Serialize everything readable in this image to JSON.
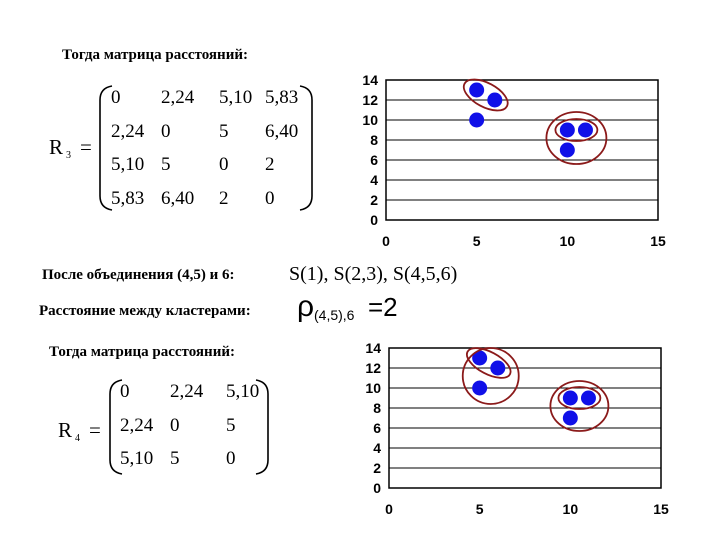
{
  "slide": {
    "heading1": "Тогда матрица расстояний:",
    "heading2": "Тогда матрица расстояний:",
    "merge_text": "После объединения (4,5) и 6:",
    "clusters": "S(1),  S(2,3),  S(4,5,6)",
    "distance_text": "Расстояние между кластерами:",
    "rho_symbol": "ρ",
    "rho_subscript": "(4,5),6",
    "rho_value": "=2"
  },
  "matrix3": {
    "name": "R",
    "sub": "3",
    "eq": "=",
    "rows": [
      [
        "0",
        "2,24",
        "5,10",
        "5,83"
      ],
      [
        "2,24",
        "0",
        "5",
        "6,40"
      ],
      [
        "5,10",
        "5",
        "0",
        "2"
      ],
      [
        "5,83",
        "6,40",
        "2",
        "0"
      ]
    ]
  },
  "matrix4": {
    "name": "R",
    "sub": "4",
    "eq": "=",
    "rows": [
      [
        "0",
        "2,24",
        "5,10"
      ],
      [
        "2,24",
        "0",
        "5"
      ],
      [
        "5,10",
        "5",
        "0"
      ]
    ]
  },
  "chart_data": [
    {
      "type": "scatter",
      "x": [
        5,
        6,
        5,
        10,
        11,
        10
      ],
      "y": [
        13,
        12,
        10,
        9,
        9,
        7
      ],
      "xlim": [
        0,
        15
      ],
      "ylim": [
        0,
        14
      ],
      "xticks": [
        "0",
        "5",
        "10",
        "15"
      ],
      "yticks": [
        "0",
        "2",
        "4",
        "6",
        "8",
        "10",
        "12",
        "14"
      ],
      "grid": "horizontal",
      "point_color": "#1010e8",
      "cluster_color": "#8b1a1a",
      "clusters": [
        [
          [
            5,
            13
          ],
          [
            6,
            12
          ]
        ],
        [
          [
            10,
            9
          ],
          [
            11,
            9
          ],
          [
            10,
            7
          ]
        ],
        [
          [
            10,
            9
          ],
          [
            11,
            9
          ]
        ]
      ]
    },
    {
      "type": "scatter",
      "x": [
        5,
        6,
        5,
        10,
        11,
        10
      ],
      "y": [
        13,
        12,
        10,
        9,
        9,
        7
      ],
      "xlim": [
        0,
        15
      ],
      "ylim": [
        0,
        14
      ],
      "xticks": [
        "0",
        "5",
        "10",
        "15"
      ],
      "yticks": [
        "0",
        "2",
        "4",
        "6",
        "8",
        "10",
        "12",
        "14"
      ],
      "grid": "horizontal",
      "point_color": "#1010e8",
      "cluster_color": "#8b1a1a",
      "clusters": [
        [
          [
            5,
            13
          ],
          [
            6,
            12
          ],
          [
            5,
            10
          ]
        ],
        [
          [
            5,
            13
          ],
          [
            6,
            12
          ]
        ],
        [
          [
            10,
            9
          ],
          [
            11,
            9
          ],
          [
            10,
            7
          ]
        ],
        [
          [
            10,
            9
          ],
          [
            11,
            9
          ]
        ]
      ]
    }
  ]
}
